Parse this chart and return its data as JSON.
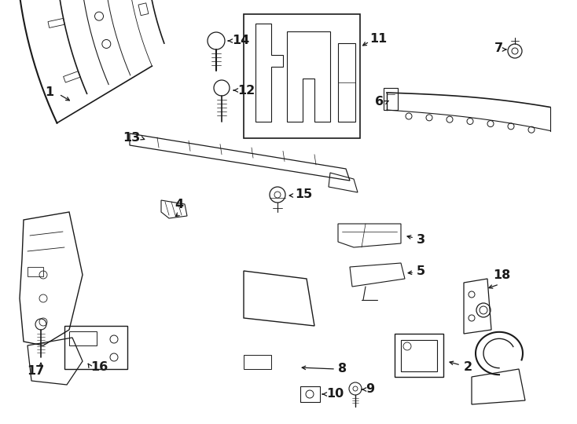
{
  "bg": "#ffffff",
  "lc": "#1a1a1a",
  "figsize": [
    7.34,
    5.4
  ],
  "dpi": 100
}
